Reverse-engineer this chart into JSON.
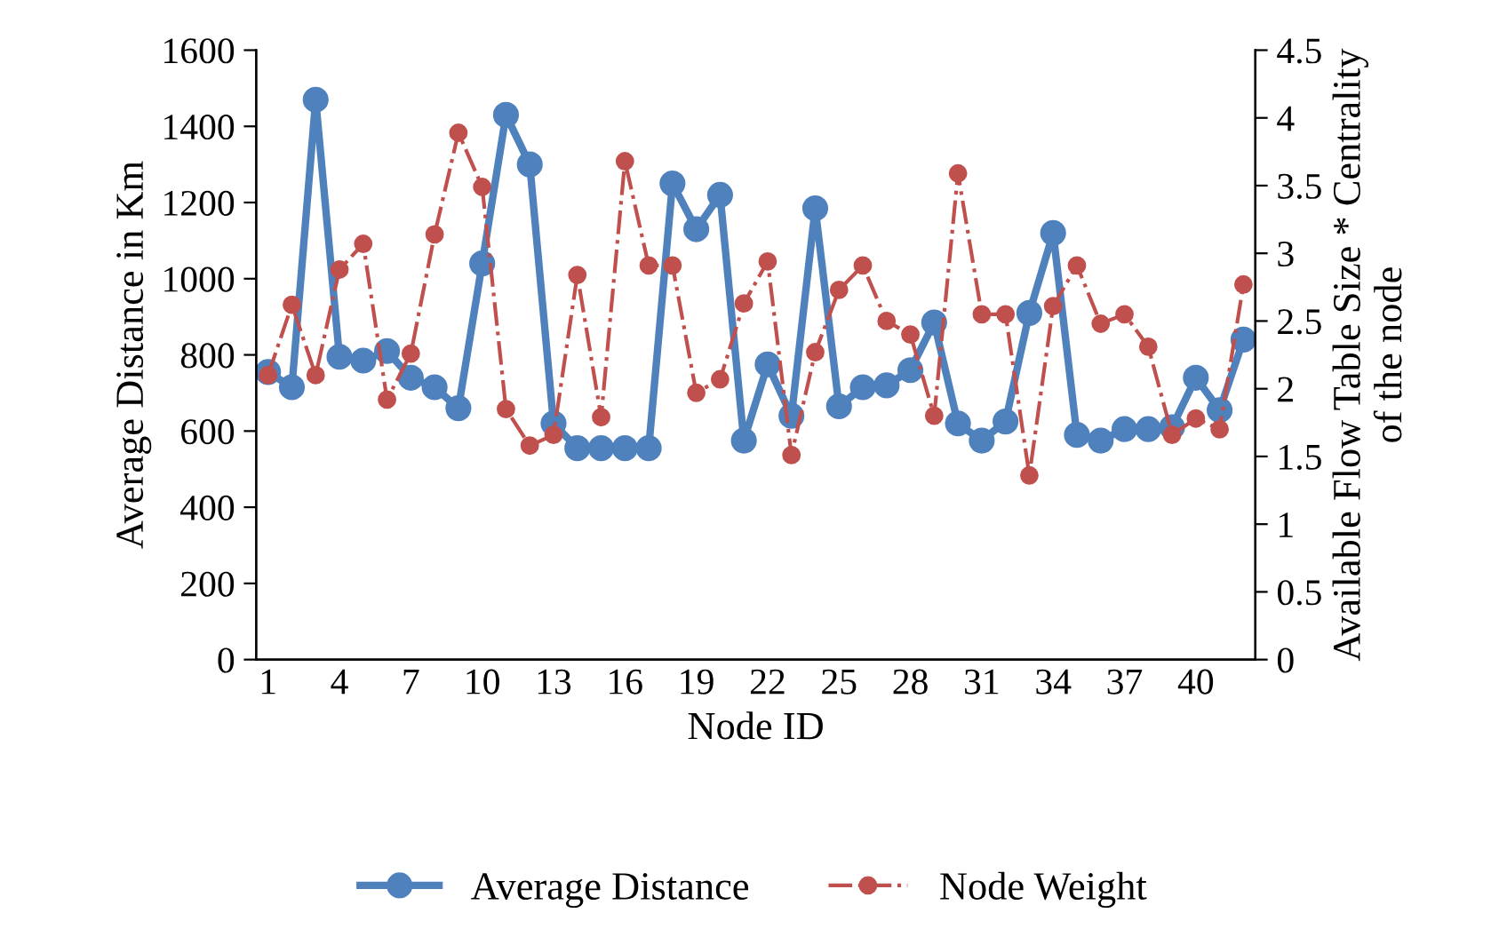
{
  "chart_data": {
    "type": "line",
    "xlabel": "Node ID",
    "ylabel": "Average Distance in Km",
    "y2label": "Available Flow Table Size * Centrality\nof the node",
    "categories": [
      "1",
      null,
      null,
      "4",
      null,
      null,
      "7",
      null,
      null,
      "10",
      null,
      null,
      "13",
      null,
      null,
      "16",
      null,
      null,
      "19",
      null,
      null,
      "22",
      null,
      null,
      "25",
      null,
      null,
      "28",
      null,
      null,
      "31",
      null,
      null,
      "34",
      null,
      null,
      "37",
      null,
      null,
      "40",
      null,
      null
    ],
    "series": [
      {
        "name": "Average Distance",
        "color": "#4f81bd",
        "line_style": "solid",
        "values": [
          755,
          715,
          1470,
          795,
          785,
          810,
          740,
          715,
          660,
          1040,
          1430,
          1300,
          620,
          555,
          555,
          555,
          555,
          1250,
          1130,
          1220,
          575,
          775,
          640,
          1185,
          665,
          715,
          720,
          760,
          885,
          620,
          575,
          625,
          910,
          1120,
          590,
          575,
          605,
          605,
          610,
          740,
          655,
          840
        ]
      },
      {
        "name": "Node Weight",
        "color": "#c0504d",
        "axis": "y2",
        "line_style": "dashdot",
        "values": [
          2.1,
          2.62,
          2.1,
          2.88,
          3.07,
          1.92,
          2.26,
          3.14,
          3.89,
          3.49,
          1.85,
          1.58,
          1.66,
          2.84,
          1.79,
          3.68,
          2.91,
          2.91,
          1.97,
          2.07,
          2.63,
          2.94,
          1.51,
          2.27,
          2.73,
          2.91,
          2.5,
          2.4,
          1.8,
          3.59,
          2.55,
          2.55,
          1.36,
          2.61,
          2.91,
          2.48,
          2.55,
          2.31,
          1.66,
          1.78,
          1.7,
          2.77
        ]
      }
    ],
    "marker": "circle",
    "ylim": [
      0,
      1600
    ],
    "yticks": [
      0,
      200,
      400,
      600,
      800,
      1000,
      1200,
      1400,
      1600
    ],
    "y2lim": [
      0,
      4.5
    ],
    "y2ticks": [
      0,
      0.5,
      1,
      1.5,
      2,
      2.5,
      3,
      3.5,
      4,
      4.5
    ],
    "grid": false,
    "legend": "bottom"
  }
}
